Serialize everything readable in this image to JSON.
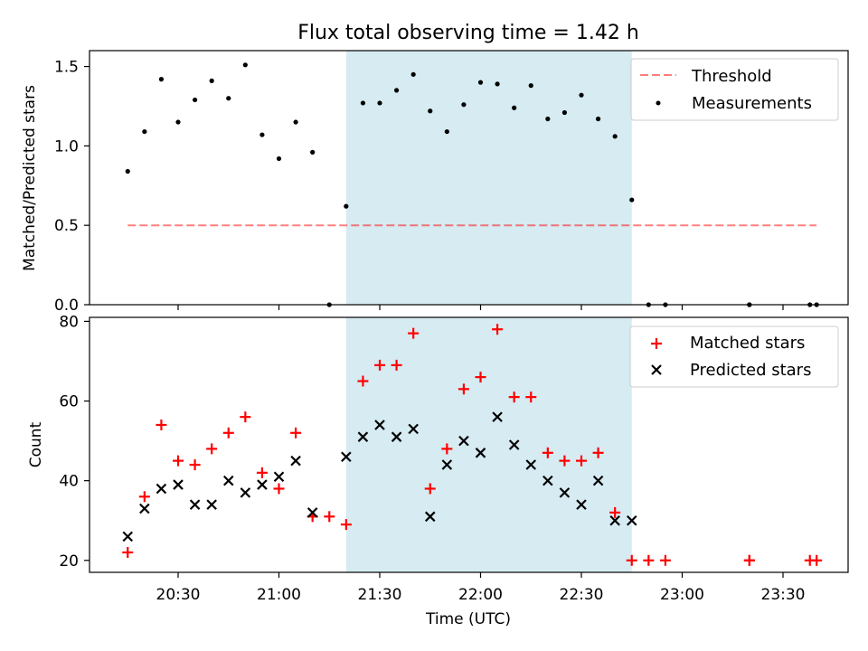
{
  "title": "Flux total observing time = 1.42 h",
  "x_tick_labels": [
    "20:30",
    "21:00",
    "21:30",
    "22:00",
    "22:30",
    "23:00",
    "23:30"
  ],
  "chart_data": [
    {
      "type": "scatter",
      "ylabel": "Matched/Predicted stars",
      "ylim": [
        0,
        1.6
      ],
      "y_ticks": [
        "0.0",
        "0.5",
        "1.0",
        "1.5"
      ],
      "highlight_span": {
        "x": [
          "21:20",
          "22:45"
        ],
        "color": "#add8e6"
      },
      "legend_position": "top-right",
      "threshold": {
        "name": "Threshold",
        "value": 0.5,
        "x": [
          "20:15",
          "23:40"
        ],
        "color": "#ff0000",
        "style": "dashed"
      },
      "series": [
        {
          "name": "Measurements",
          "color": "#000000",
          "marker": "dot",
          "points": [
            [
              "20:15",
              0.84
            ],
            [
              "20:20",
              1.09
            ],
            [
              "20:25",
              1.42
            ],
            [
              "20:30",
              1.15
            ],
            [
              "20:35",
              1.29
            ],
            [
              "20:40",
              1.41
            ],
            [
              "20:45",
              1.3
            ],
            [
              "20:50",
              1.51
            ],
            [
              "20:55",
              1.07
            ],
            [
              "21:00",
              0.92
            ],
            [
              "21:05",
              1.15
            ],
            [
              "21:10",
              0.96
            ],
            [
              "21:15",
              0.0
            ],
            [
              "21:20",
              0.62
            ],
            [
              "21:25",
              1.27
            ],
            [
              "21:30",
              1.27
            ],
            [
              "21:35",
              1.35
            ],
            [
              "21:40",
              1.45
            ],
            [
              "21:45",
              1.22
            ],
            [
              "21:50",
              1.09
            ],
            [
              "21:55",
              1.26
            ],
            [
              "22:00",
              1.4
            ],
            [
              "22:05",
              1.39
            ],
            [
              "22:10",
              1.24
            ],
            [
              "22:15",
              1.38
            ],
            [
              "22:20",
              1.17
            ],
            [
              "22:25",
              1.21
            ],
            [
              "22:30",
              1.32
            ],
            [
              "22:35",
              1.17
            ],
            [
              "22:40",
              1.06
            ],
            [
              "22:45",
              0.66
            ],
            [
              "22:50",
              0.0
            ],
            [
              "22:55",
              0.0
            ],
            [
              "23:20",
              0.0
            ],
            [
              "23:20",
              0.0
            ],
            [
              "23:38",
              0.0
            ],
            [
              "23:40",
              0.0
            ]
          ]
        }
      ]
    },
    {
      "type": "scatter",
      "xlabel": "Time (UTC)",
      "ylabel": "Count",
      "ylim": [
        17,
        81
      ],
      "y_ticks": [
        "20",
        "40",
        "60",
        "80"
      ],
      "highlight_span": {
        "x": [
          "21:20",
          "22:45"
        ],
        "color": "#add8e6"
      },
      "legend_position": "top-right",
      "series": [
        {
          "name": "Matched stars",
          "color": "#ff0000",
          "marker": "plus",
          "points": [
            [
              "20:15",
              22
            ],
            [
              "20:20",
              36
            ],
            [
              "20:25",
              54
            ],
            [
              "20:30",
              45
            ],
            [
              "20:35",
              44
            ],
            [
              "20:40",
              48
            ],
            [
              "20:45",
              52
            ],
            [
              "20:50",
              56
            ],
            [
              "20:55",
              42
            ],
            [
              "21:00",
              38
            ],
            [
              "21:05",
              52
            ],
            [
              "21:10",
              31
            ],
            [
              "21:15",
              31
            ],
            [
              "21:20",
              29
            ],
            [
              "21:25",
              65
            ],
            [
              "21:30",
              69
            ],
            [
              "21:35",
              69
            ],
            [
              "21:40",
              77
            ],
            [
              "21:45",
              38
            ],
            [
              "21:50",
              48
            ],
            [
              "21:55",
              63
            ],
            [
              "22:00",
              66
            ],
            [
              "22:05",
              78
            ],
            [
              "22:10",
              61
            ],
            [
              "22:15",
              61
            ],
            [
              "22:20",
              47
            ],
            [
              "22:25",
              45
            ],
            [
              "22:30",
              45
            ],
            [
              "22:35",
              47
            ],
            [
              "22:40",
              32
            ],
            [
              "22:45",
              20
            ],
            [
              "22:50",
              20
            ],
            [
              "22:55",
              20
            ],
            [
              "23:20",
              20
            ],
            [
              "23:20",
              20
            ],
            [
              "23:38",
              20
            ],
            [
              "23:40",
              20
            ]
          ]
        },
        {
          "name": "Predicted stars",
          "color": "#000000",
          "marker": "x",
          "points": [
            [
              "20:15",
              26
            ],
            [
              "20:20",
              33
            ],
            [
              "20:25",
              38
            ],
            [
              "20:30",
              39
            ],
            [
              "20:35",
              34
            ],
            [
              "20:40",
              34
            ],
            [
              "20:45",
              40
            ],
            [
              "20:50",
              37
            ],
            [
              "20:55",
              39
            ],
            [
              "21:00",
              41
            ],
            [
              "21:05",
              45
            ],
            [
              "21:10",
              32
            ],
            [
              "21:20",
              46
            ],
            [
              "21:25",
              51
            ],
            [
              "21:30",
              54
            ],
            [
              "21:35",
              51
            ],
            [
              "21:40",
              53
            ],
            [
              "21:45",
              31
            ],
            [
              "21:50",
              44
            ],
            [
              "21:55",
              50
            ],
            [
              "22:00",
              47
            ],
            [
              "22:05",
              56
            ],
            [
              "22:10",
              49
            ],
            [
              "22:15",
              44
            ],
            [
              "22:20",
              40
            ],
            [
              "22:25",
              37
            ],
            [
              "22:30",
              34
            ],
            [
              "22:35",
              40
            ],
            [
              "22:40",
              30
            ],
            [
              "22:45",
              30
            ]
          ]
        }
      ]
    }
  ]
}
